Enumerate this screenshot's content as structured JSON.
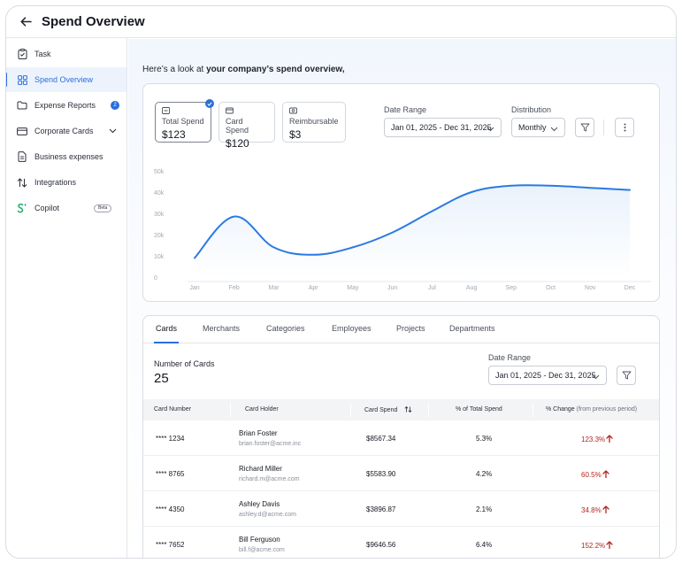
{
  "header": {
    "title": "Spend Overview"
  },
  "sidebar": {
    "items": [
      {
        "label": "Task"
      },
      {
        "label": "Spend Overview"
      },
      {
        "label": "Expense Reports",
        "badge": "2"
      },
      {
        "label": "Corporate Cards"
      },
      {
        "label": "Business expenses"
      },
      {
        "label": "Integrations"
      },
      {
        "label": "Copilot",
        "badge": "Beta"
      }
    ]
  },
  "intro": {
    "prefix": "Here’s a look at ",
    "bold": "your company’s spend overview,"
  },
  "stats": [
    {
      "label": "Total Spend",
      "value": "$123"
    },
    {
      "label": "Card Spend",
      "value": "$120"
    },
    {
      "label": "Reimbursable",
      "value": "$3"
    }
  ],
  "controls": {
    "date_range_label": "Date Range",
    "date_range_value": "Jan 01, 2025 - Dec 31, 2025",
    "distribution_label": "Distribution",
    "distribution_value": "Monthly"
  },
  "chart_data": {
    "type": "line",
    "categories": [
      "Jan",
      "Feb",
      "Mar",
      "Apr",
      "May",
      "Jun",
      "Jul",
      "Aug",
      "Sep",
      "Oct",
      "Nov",
      "Dec"
    ],
    "yticks": [
      "0",
      "10k",
      "20k",
      "30k",
      "40k",
      "50k"
    ],
    "ylim": [
      0,
      50000
    ],
    "values": [
      9000,
      28500,
      14000,
      10500,
      14000,
      21000,
      31000,
      40000,
      43000,
      43000,
      42000,
      41000
    ],
    "color": "#2a7ae2",
    "grid": false
  },
  "tabs": [
    {
      "label": "Cards"
    },
    {
      "label": "Merchants"
    },
    {
      "label": "Categories"
    },
    {
      "label": "Employees"
    },
    {
      "label": "Projects"
    },
    {
      "label": "Departments"
    }
  ],
  "cards_panel": {
    "count_label": "Number of Cards",
    "count_value": "25",
    "date_range_label": "Date Range",
    "date_range_value": "Jan 01, 2025 - Dec 31, 2025"
  },
  "table": {
    "headers": {
      "card_number": "Card Number",
      "card_holder": "Card Holder",
      "card_spend": "Card Spend",
      "pct_total": "% of Total Spend",
      "pct_change": "% Change",
      "pct_change_sub": "(from previous period)"
    },
    "rows": [
      {
        "card": "**** 1234",
        "name": "Brian Foster",
        "email": "brian.foster@acme.inc",
        "spend": "$8567.34",
        "pct": "5.3%",
        "change": "123.3%"
      },
      {
        "card": "**** 8765",
        "name": "Richard Miller",
        "email": "richard.m@acme.com",
        "spend": "$5583.90",
        "pct": "4.2%",
        "change": "60.5%"
      },
      {
        "card": "**** 4350",
        "name": "Ashley Davis",
        "email": "ashley.d@acme.com",
        "spend": "$3896.87",
        "pct": "2.1%",
        "change": "34.8%"
      },
      {
        "card": "**** 7652",
        "name": "Bill Ferguson",
        "email": "bill.f@acme.com",
        "spend": "$9646.56",
        "pct": "6.4%",
        "change": "152.2%"
      }
    ]
  }
}
